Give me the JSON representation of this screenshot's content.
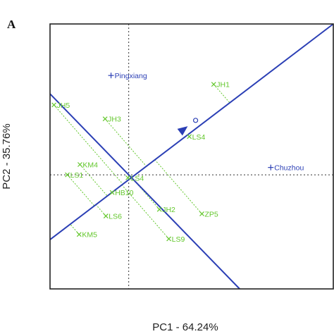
{
  "panel_label": "A",
  "chart_data": {
    "type": "scatter",
    "subtype": "GGE biplot (which-won-where)",
    "xlabel": "PC1 - 64.24%",
    "ylabel": "PC2 - 35.76%",
    "xlim": [
      -1.0,
      2.6
    ],
    "ylim": [
      -1.55,
      2.05
    ],
    "grid": false,
    "legend": "none",
    "colors": {
      "environments": "#2b3fb5",
      "genotypes": "#63c72c",
      "lines": "#2b3fb5",
      "reference": "#333333"
    },
    "environments": [
      {
        "name": "Pingxiang",
        "x": -0.18,
        "y": 1.35
      },
      {
        "name": "Chuzhou",
        "x": 1.85,
        "y": 0.1
      }
    ],
    "genotypes": [
      {
        "name": "JH1",
        "x": 1.08,
        "y": 1.23
      },
      {
        "name": "JH5",
        "x": -0.95,
        "y": 0.95
      },
      {
        "name": "JH3",
        "x": -0.3,
        "y": 0.76
      },
      {
        "name": "LS4",
        "x": 0.77,
        "y": 0.52
      },
      {
        "name": "KM4",
        "x": -0.62,
        "y": 0.14
      },
      {
        "name": "LS1",
        "x": -0.78,
        "y": 0.0
      },
      {
        "name": "LS4",
        "x": -0.01,
        "y": -0.04
      },
      {
        "name": "HB10",
        "x": -0.21,
        "y": -0.24
      },
      {
        "name": "JH2",
        "x": 0.39,
        "y": -0.47
      },
      {
        "name": "ZP5",
        "x": 0.93,
        "y": -0.53
      },
      {
        "name": "LS6",
        "x": -0.29,
        "y": -0.56
      },
      {
        "name": "KM5",
        "x": -0.63,
        "y": -0.81
      },
      {
        "name": "LS9",
        "x": 0.51,
        "y": -0.87
      }
    ],
    "average_environment_axis": {
      "from": [
        -1.0,
        -0.88
      ],
      "to": [
        2.6,
        2.05
      ],
      "arrow_at": [
        0.75,
        0.66
      ]
    },
    "perpendicular_axis": {
      "from": [
        -1.0,
        1.1
      ],
      "to": [
        1.41,
        -1.55
      ]
    },
    "average_environment_marker": {
      "x": 0.85,
      "y": 0.74
    }
  }
}
